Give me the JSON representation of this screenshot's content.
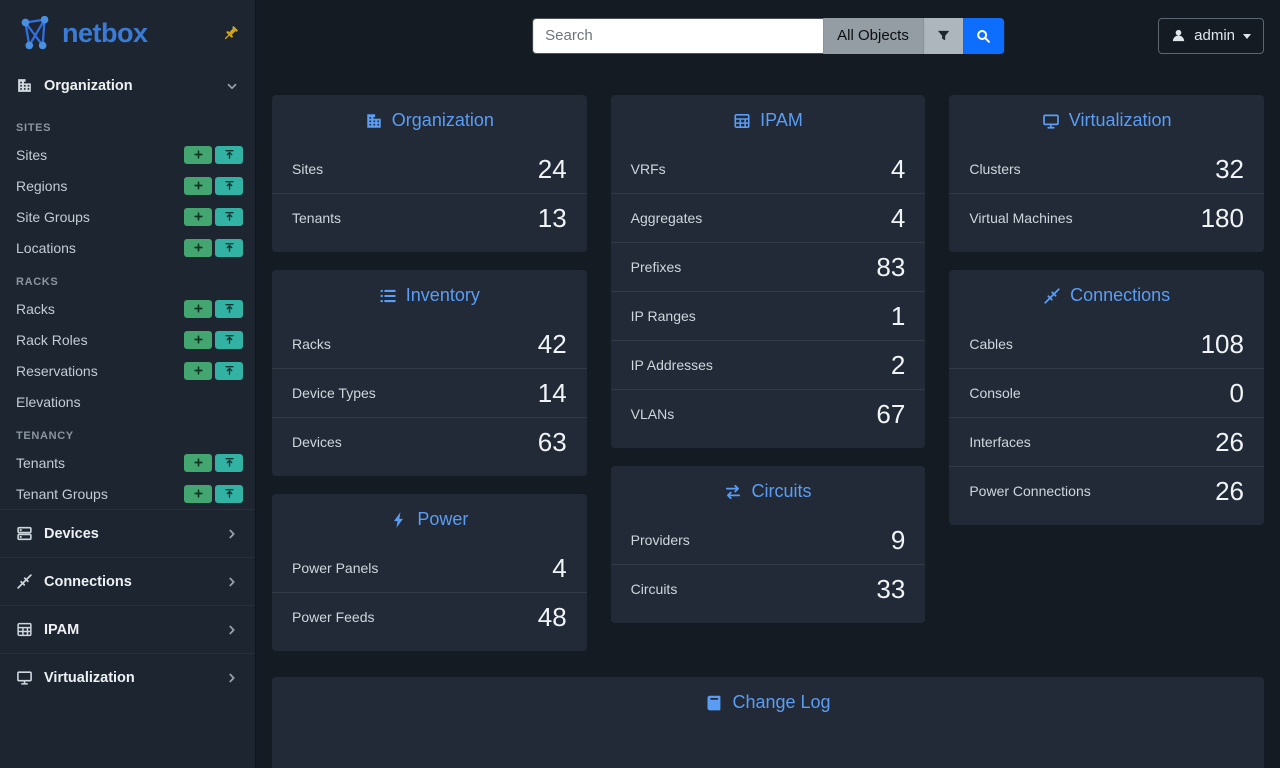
{
  "brand": {
    "name": "netbox"
  },
  "topbar": {
    "search_placeholder": "Search",
    "scope_label": "All Objects",
    "user_label": "admin"
  },
  "sidebar": {
    "sections": [
      {
        "label": "Organization",
        "icon": "organization-icon",
        "expanded": true,
        "groups": [
          {
            "header": "SITES",
            "items": [
              {
                "label": "Sites",
                "actions": [
                  "add",
                  "import"
                ]
              },
              {
                "label": "Regions",
                "actions": [
                  "add",
                  "import"
                ]
              },
              {
                "label": "Site Groups",
                "actions": [
                  "add",
                  "import"
                ]
              },
              {
                "label": "Locations",
                "actions": [
                  "add",
                  "import"
                ]
              }
            ]
          },
          {
            "header": "RACKS",
            "items": [
              {
                "label": "Racks",
                "actions": [
                  "add",
                  "import"
                ]
              },
              {
                "label": "Rack Roles",
                "actions": [
                  "add",
                  "import"
                ]
              },
              {
                "label": "Reservations",
                "actions": [
                  "add",
                  "import"
                ]
              },
              {
                "label": "Elevations",
                "actions": []
              }
            ]
          },
          {
            "header": "TENANCY",
            "items": [
              {
                "label": "Tenants",
                "actions": [
                  "add",
                  "import"
                ]
              },
              {
                "label": "Tenant Groups",
                "actions": [
                  "add",
                  "import"
                ]
              }
            ]
          }
        ]
      },
      {
        "label": "Devices",
        "icon": "devices-icon",
        "expanded": false
      },
      {
        "label": "Connections",
        "icon": "connections-icon",
        "expanded": false
      },
      {
        "label": "IPAM",
        "icon": "ipam-icon",
        "expanded": false
      },
      {
        "label": "Virtualization",
        "icon": "virtualization-icon",
        "expanded": false
      }
    ]
  },
  "dashboard": {
    "columns": [
      [
        {
          "title": "Organization",
          "icon": "organization-icon",
          "rows": [
            {
              "label": "Sites",
              "value": 24
            },
            {
              "label": "Tenants",
              "value": 13
            }
          ]
        },
        {
          "title": "Inventory",
          "icon": "inventory-icon",
          "rows": [
            {
              "label": "Racks",
              "value": 42
            },
            {
              "label": "Device Types",
              "value": 14
            },
            {
              "label": "Devices",
              "value": 63
            }
          ]
        },
        {
          "title": "Power",
          "icon": "power-icon",
          "rows": [
            {
              "label": "Power Panels",
              "value": 4
            },
            {
              "label": "Power Feeds",
              "value": 48
            }
          ]
        }
      ],
      [
        {
          "title": "IPAM",
          "icon": "ipam-icon",
          "rows": [
            {
              "label": "VRFs",
              "value": 4
            },
            {
              "label": "Aggregates",
              "value": 4
            },
            {
              "label": "Prefixes",
              "value": 83
            },
            {
              "label": "IP Ranges",
              "value": 1
            },
            {
              "label": "IP Addresses",
              "value": 2
            },
            {
              "label": "VLANs",
              "value": 67
            }
          ]
        },
        {
          "title": "Circuits",
          "icon": "circuits-icon",
          "rows": [
            {
              "label": "Providers",
              "value": 9
            },
            {
              "label": "Circuits",
              "value": 33
            }
          ]
        }
      ],
      [
        {
          "title": "Virtualization",
          "icon": "virtualization-icon",
          "rows": [
            {
              "label": "Clusters",
              "value": 32
            },
            {
              "label": "Virtual Machines",
              "value": 180
            }
          ]
        },
        {
          "title": "Connections",
          "icon": "connections-icon",
          "rows": [
            {
              "label": "Cables",
              "value": 108
            },
            {
              "label": "Console",
              "value": 0
            },
            {
              "label": "Interfaces",
              "value": 26
            },
            {
              "label": "Power Connections",
              "value": 26
            }
          ]
        }
      ]
    ],
    "changelog": {
      "title": "Change Log",
      "icon": "changelog-icon"
    }
  },
  "colors": {
    "accent_blue": "#5b9df5",
    "brand_blue": "#3a7bd5",
    "search_button_blue": "#0d6efd",
    "add_green": "#43a56f",
    "import_teal": "#31b2a2",
    "pin_gold": "#d4a910",
    "card_background": "#212a36",
    "sidebar_background": "#1d2530",
    "page_background": "#141b23"
  }
}
